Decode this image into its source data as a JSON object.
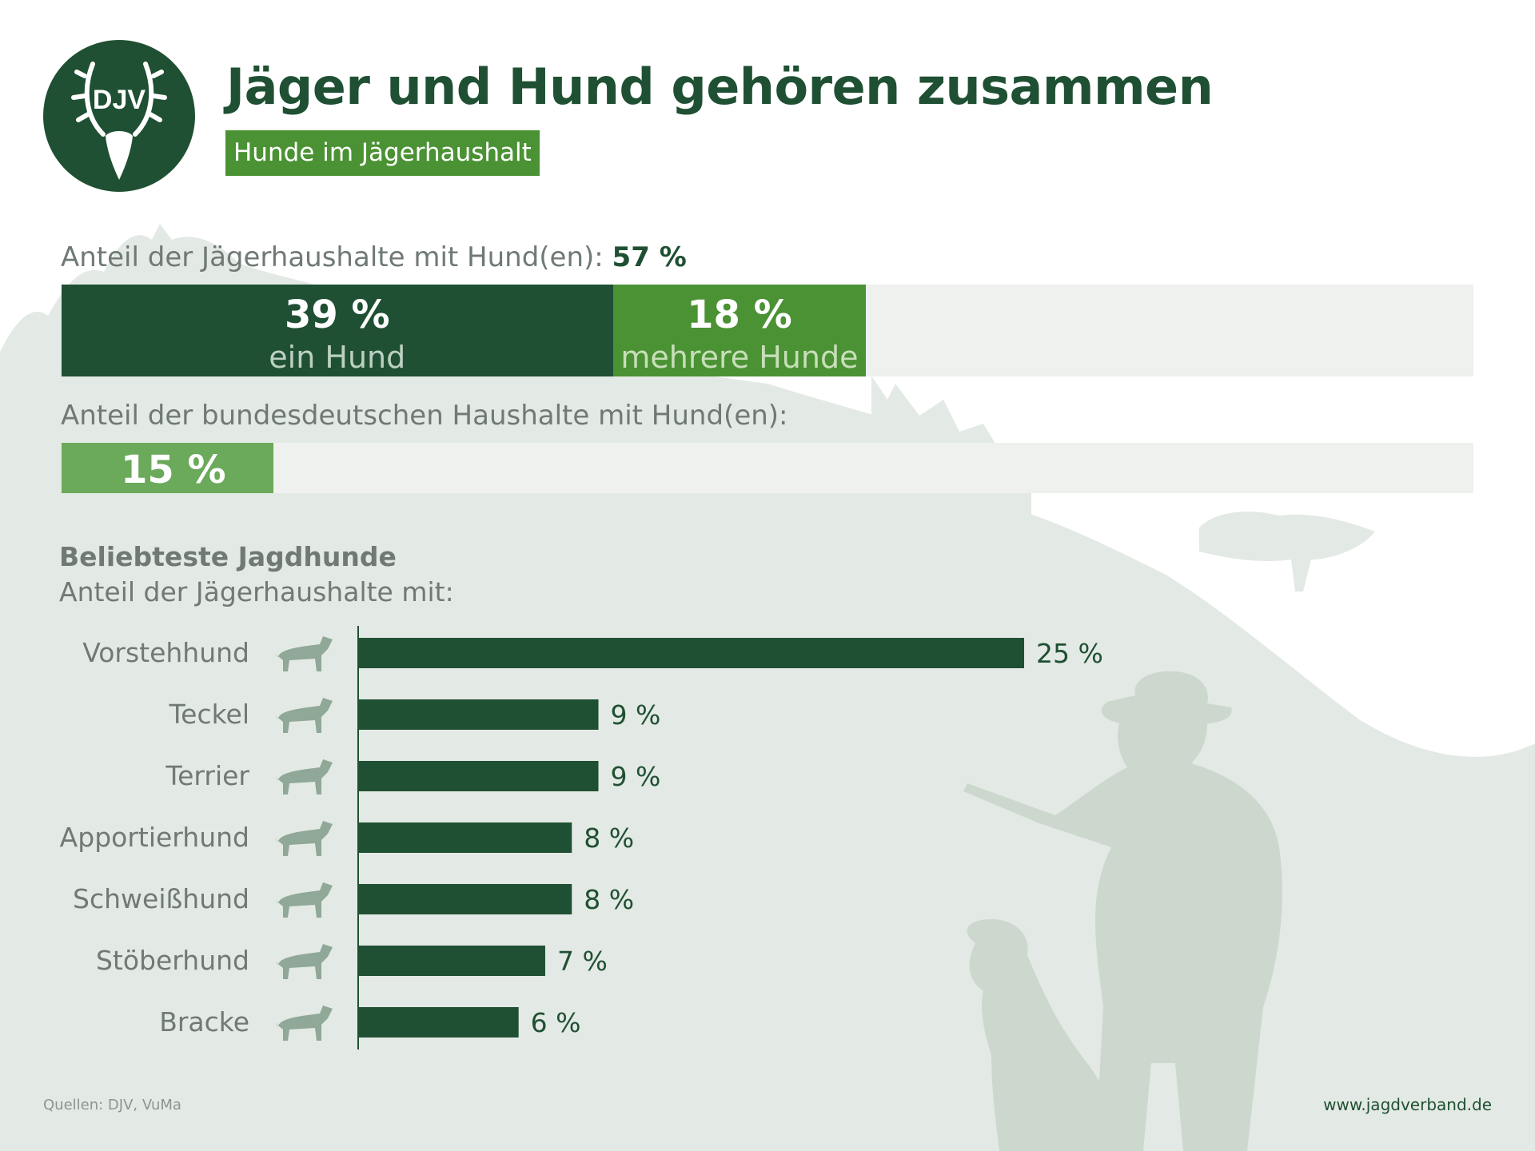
{
  "header": {
    "logo_text": "DJV",
    "title": "Jäger und Hund gehören zusammen",
    "subtitle": "Hunde im Jägerhaushalt"
  },
  "share_hunters": {
    "label": "Anteil der Jägerhaushalte mit Hund(en):",
    "total": "57 %",
    "segments": [
      {
        "value": 39,
        "value_label": "39 %",
        "text": "ein Hund",
        "color": "#1f5033",
        "text_color": "#bcd0c2"
      },
      {
        "value": 18,
        "value_label": "18 %",
        "text": "mehrere Hunde",
        "color": "#4a9233",
        "text_color": "#c8dfb9"
      }
    ]
  },
  "share_germany": {
    "label": "Anteil der bundesdeutschen Haushalte mit Hund(en):",
    "value": 15,
    "value_label": "15 %",
    "color": "#6aaa5a"
  },
  "section": {
    "title": "Beliebteste Jagdhunde",
    "subtitle": "Anteil der Jägerhaushalte mit:"
  },
  "chart_data": {
    "type": "bar",
    "orientation": "horizontal",
    "categories": [
      "Vorstehhund",
      "Teckel",
      "Terrier",
      "Apportierhund",
      "Schweißhund",
      "Stöberhund",
      "Bracke"
    ],
    "values": [
      25,
      9,
      9,
      8,
      8,
      7,
      6
    ],
    "value_labels": [
      "25 %",
      "9 %",
      "9 %",
      "8 %",
      "8 %",
      "7 %",
      "6 %"
    ],
    "icons": [
      "pointer-dog-icon",
      "dachshund-icon",
      "terrier-icon",
      "retriever-icon",
      "bloodhound-icon",
      "spaniel-icon",
      "beagle-icon"
    ],
    "xlim": [
      0,
      25
    ],
    "bar_color": "#1f5033",
    "grid": false
  },
  "footer": {
    "sources": "Quellen: DJV, VuMa",
    "url": "www.jagdverband.de"
  },
  "colors": {
    "dark_green": "#1f5033",
    "mid_green": "#4a9233",
    "light_green": "#6aaa5a",
    "background_silhouette": "#e3e9e4"
  }
}
